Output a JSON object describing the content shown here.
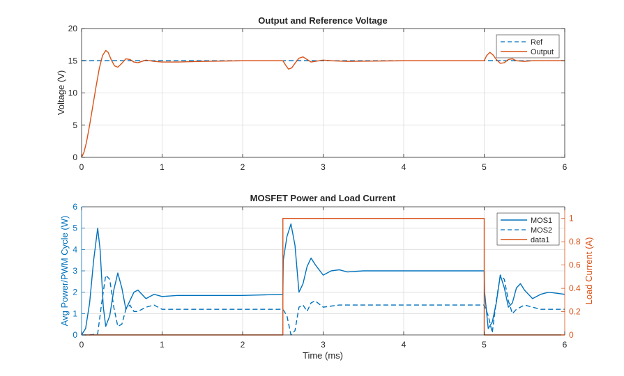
{
  "colors": {
    "blue": "#0072BD",
    "orange": "#D95319",
    "axis": "#262626",
    "grid": "#dcdcdc"
  },
  "chart_data": [
    {
      "type": "line",
      "title": "Output and Reference Voltage",
      "xlabel": "",
      "ylabel": "Voltage (V)",
      "xlim": [
        0,
        6
      ],
      "ylim": [
        0,
        20
      ],
      "xticks": [
        "0",
        "1",
        "2",
        "3",
        "4",
        "5",
        "6"
      ],
      "yticks": [
        "0",
        "5",
        "10",
        "15",
        "20"
      ],
      "grid": true,
      "legend": {
        "placement": "top-right",
        "entries": [
          "Ref",
          "Output"
        ]
      },
      "series": [
        {
          "name": "Ref",
          "style": "dashed",
          "color": "blue",
          "x": [
            0,
            6
          ],
          "y": [
            15,
            15
          ]
        },
        {
          "name": "Output",
          "style": "solid",
          "color": "orange",
          "x": [
            0,
            0.03,
            0.06,
            0.1,
            0.14,
            0.18,
            0.22,
            0.26,
            0.3,
            0.33,
            0.37,
            0.41,
            0.45,
            0.5,
            0.55,
            0.6,
            0.65,
            0.7,
            0.75,
            0.8,
            0.9,
            1.0,
            1.2,
            1.5,
            2.0,
            2.5,
            2.53,
            2.57,
            2.61,
            2.65,
            2.7,
            2.75,
            2.8,
            2.85,
            2.9,
            3.0,
            3.1,
            3.3,
            4.0,
            5.0,
            5.03,
            5.07,
            5.11,
            5.15,
            5.2,
            5.25,
            5.3,
            5.35,
            5.4,
            5.5,
            5.6,
            5.8,
            6.0
          ],
          "y": [
            0,
            0.8,
            2.3,
            5.0,
            8.0,
            11.0,
            13.8,
            15.8,
            16.6,
            16.3,
            15.1,
            14.2,
            14.0,
            14.6,
            15.3,
            15.2,
            14.8,
            14.7,
            14.9,
            15.1,
            14.9,
            14.8,
            14.8,
            14.9,
            15.0,
            15.0,
            14.4,
            13.7,
            13.9,
            14.6,
            15.4,
            15.6,
            15.2,
            14.8,
            14.9,
            15.1,
            15.0,
            14.9,
            15.0,
            15.0,
            15.8,
            16.3,
            15.9,
            15.2,
            14.6,
            14.7,
            15.2,
            15.3,
            15.0,
            14.9,
            15.0,
            15.0,
            15.0
          ]
        }
      ]
    },
    {
      "type": "line",
      "title": "MOSFET Power and Load Current",
      "xlabel": "Time (ms)",
      "ylabel": "Avg Power/PWM Cycle (W)",
      "ylabel_right": "Load Current (A)",
      "xlim": [
        0,
        6
      ],
      "ylim": [
        0,
        6
      ],
      "ylim_right": [
        0,
        1.1
      ],
      "xticks": [
        "0",
        "1",
        "2",
        "3",
        "4",
        "5",
        "6"
      ],
      "yticks": [
        "0",
        "1",
        "2",
        "3",
        "4",
        "5",
        "6"
      ],
      "yticks_right": [
        "0",
        "0.2",
        "0.4",
        "0.6",
        "0.8",
        "1"
      ],
      "grid": true,
      "legend": {
        "placement": "top-right",
        "entries": [
          "MOS1",
          "MOS2",
          "data1"
        ]
      },
      "series": [
        {
          "name": "MOS1",
          "style": "solid",
          "color": "blue",
          "axis": "left",
          "x": [
            0,
            0.05,
            0.1,
            0.15,
            0.2,
            0.23,
            0.27,
            0.3,
            0.35,
            0.4,
            0.45,
            0.5,
            0.55,
            0.6,
            0.65,
            0.7,
            0.75,
            0.8,
            0.85,
            0.9,
            1.0,
            1.2,
            1.5,
            2.0,
            2.5,
            2.505,
            2.55,
            2.6,
            2.65,
            2.7,
            2.75,
            2.8,
            2.85,
            2.9,
            3.0,
            3.1,
            3.2,
            3.3,
            3.5,
            4.0,
            5.0,
            5.005,
            5.05,
            5.1,
            5.15,
            5.2,
            5.25,
            5.3,
            5.35,
            5.4,
            5.45,
            5.5,
            5.6,
            5.7,
            5.8,
            6.0
          ],
          "y": [
            0,
            0.3,
            1.5,
            3.5,
            5.0,
            4.0,
            1.3,
            0.4,
            0.9,
            2.1,
            2.9,
            2.2,
            1.2,
            1.6,
            2.0,
            2.1,
            1.9,
            1.7,
            1.8,
            1.9,
            1.8,
            1.85,
            1.85,
            1.85,
            1.9,
            3.5,
            4.6,
            5.2,
            4.2,
            2.0,
            2.4,
            3.2,
            3.6,
            3.3,
            2.8,
            3.0,
            3.05,
            2.95,
            3.0,
            3.0,
            3.0,
            2.0,
            0.3,
            0.6,
            1.5,
            2.8,
            2.2,
            1.3,
            1.5,
            2.2,
            2.4,
            2.1,
            1.7,
            1.9,
            2.0,
            1.9
          ]
        },
        {
          "name": "MOS2",
          "style": "dashed",
          "color": "blue",
          "axis": "left",
          "x": [
            0,
            0.1,
            0.2,
            0.25,
            0.3,
            0.35,
            0.4,
            0.45,
            0.5,
            0.55,
            0.6,
            0.65,
            0.7,
            0.8,
            0.9,
            1.0,
            1.5,
            2.0,
            2.5,
            2.55,
            2.6,
            2.65,
            2.7,
            2.75,
            2.8,
            2.85,
            2.9,
            3.0,
            3.2,
            4.0,
            5.0,
            5.05,
            5.1,
            5.15,
            5.2,
            5.25,
            5.3,
            5.35,
            5.4,
            5.5,
            5.6,
            5.7,
            6.0
          ],
          "y": [
            0,
            0,
            0.05,
            1.5,
            2.8,
            2.6,
            1.3,
            0.4,
            0.5,
            1.2,
            1.4,
            1.1,
            1.1,
            1.3,
            1.4,
            1.2,
            1.2,
            1.2,
            1.2,
            0.9,
            0.0,
            0.2,
            1.3,
            1.4,
            1.1,
            1.5,
            1.6,
            1.3,
            1.4,
            1.4,
            1.4,
            0.9,
            0.1,
            1.6,
            2.8,
            2.6,
            1.6,
            1.0,
            1.2,
            1.4,
            1.3,
            1.2,
            1.2
          ]
        },
        {
          "name": "data1",
          "style": "solid",
          "color": "orange",
          "axis": "right",
          "x": [
            0,
            2.5,
            2.5,
            5.0,
            5.0,
            6.0
          ],
          "y": [
            0,
            0,
            1,
            1,
            0,
            0
          ]
        }
      ]
    }
  ]
}
